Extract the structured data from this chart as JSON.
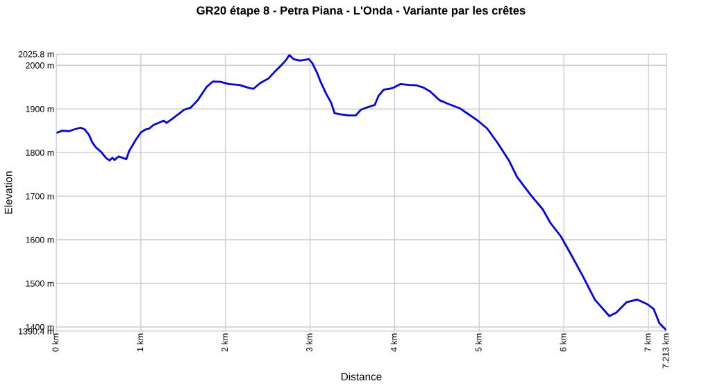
{
  "chart_data": {
    "type": "line",
    "title": "GR20 étape 8 - Petra Piana - L'Onda - Variante par les crêtes",
    "xlabel": "Distance",
    "ylabel": "Elevation",
    "xlim": [
      0,
      7.213
    ],
    "ylim": [
      1390.4,
      2025.8
    ],
    "xticks": [
      {
        "value": 0,
        "label": "0 km"
      },
      {
        "value": 1,
        "label": "1 km"
      },
      {
        "value": 2,
        "label": "2 km"
      },
      {
        "value": 3,
        "label": "3 km"
      },
      {
        "value": 4,
        "label": "4 km"
      },
      {
        "value": 5,
        "label": "5 km"
      },
      {
        "value": 6,
        "label": "6 km"
      },
      {
        "value": 7,
        "label": "7 km"
      },
      {
        "value": 7.213,
        "label": "7.213 km"
      }
    ],
    "yticks": [
      {
        "value": 1390.4,
        "label": "1390.4 m"
      },
      {
        "value": 1400,
        "label": "1400 m"
      },
      {
        "value": 1500,
        "label": "1500 m"
      },
      {
        "value": 1600,
        "label": "1600 m"
      },
      {
        "value": 1700,
        "label": "1700 m"
      },
      {
        "value": 1800,
        "label": "1800 m"
      },
      {
        "value": 1900,
        "label": "1900 m"
      },
      {
        "value": 2000,
        "label": "2000 m"
      },
      {
        "value": 2025.8,
        "label": "2025.8 m"
      }
    ],
    "grid": true,
    "legend": false,
    "marker": "none",
    "line_style": "solid",
    "series": [
      {
        "color": "#0000ee",
        "x": [
          0,
          0.074,
          0.156,
          0.213,
          0.287,
          0.336,
          0.386,
          0.427,
          0.468,
          0.533,
          0.591,
          0.632,
          0.664,
          0.689,
          0.738,
          0.796,
          0.829,
          0.861,
          0.943,
          1.0,
          1.058,
          1.1,
          1.148,
          1.27,
          1.304,
          1.37,
          1.452,
          1.509,
          1.59,
          1.673,
          1.78,
          1.854,
          1.944,
          2.04,
          2.166,
          2.264,
          2.33,
          2.41,
          2.51,
          2.576,
          2.66,
          2.72,
          2.756,
          2.806,
          2.88,
          2.986,
          3.027,
          3.085,
          3.125,
          3.19,
          3.25,
          3.29,
          3.38,
          3.46,
          3.54,
          3.6,
          3.667,
          3.765,
          3.81,
          3.87,
          3.94,
          3.99,
          4.07,
          4.175,
          4.26,
          4.34,
          4.42,
          4.53,
          4.64,
          4.775,
          4.856,
          4.94,
          4.996,
          5.094,
          5.217,
          5.35,
          5.447,
          5.611,
          5.75,
          5.84,
          5.964,
          6.08,
          6.226,
          6.366,
          6.538,
          6.62,
          6.743,
          6.866,
          6.99,
          7.063,
          7.129,
          7.213
        ],
        "values": [
          1845,
          1850,
          1849,
          1853,
          1857,
          1853,
          1841,
          1823,
          1812,
          1801,
          1787,
          1782,
          1788,
          1783,
          1791,
          1787,
          1785,
          1803,
          1830,
          1846,
          1853,
          1855,
          1863,
          1873,
          1868,
          1877,
          1889,
          1898,
          1903,
          1920,
          1951,
          1963,
          1962,
          1957,
          1955,
          1949,
          1946,
          1959,
          1970,
          1984,
          2000,
          2013,
          2024,
          2014,
          2011,
          2014,
          2005,
          1982,
          1962,
          1935,
          1914,
          1890,
          1887,
          1885,
          1885,
          1898,
          1903,
          1909,
          1930,
          1944,
          1946,
          1949,
          1957,
          1955,
          1954,
          1949,
          1940,
          1920,
          1911,
          1901,
          1890,
          1879,
          1871,
          1855,
          1822,
          1782,
          1744,
          1702,
          1670,
          1639,
          1608,
          1568,
          1516,
          1463,
          1425,
          1433,
          1457,
          1463,
          1452,
          1441,
          1409,
          1392
        ]
      }
    ]
  }
}
